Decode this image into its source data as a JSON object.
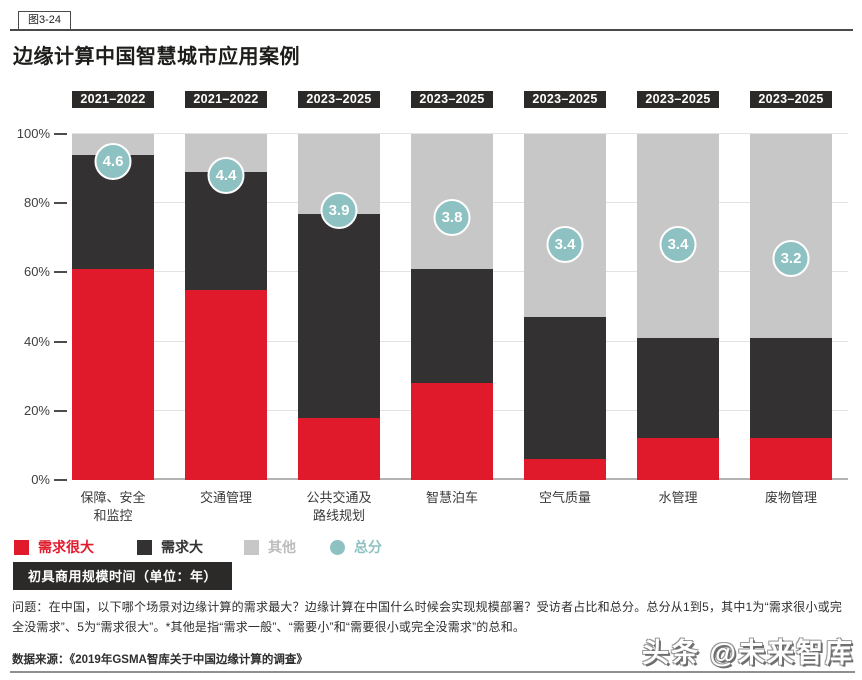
{
  "figure_tag": "图3-24",
  "title": "边缘计算中国智慧城市应用案例",
  "timeline_label": "初具商用规模时间（单位：年）",
  "note": "问题：在中国，以下哪个场景对边缘计算的需求最大？边缘计算在中国什么时候会实现规模部署？受访者占比和总分。总分从1到5，其中1为“需求很小或完全没需求”、5为“需求很大”。*其他是指“需求一般”、“需要小”和“需要很小或完全没需求”的总和。",
  "source": "数据来源：《2019年GSMA智库关于中国边缘计算的调查》",
  "watermark": "头条 @未来智库",
  "colors": {
    "very_large_demand": "#e11a2b",
    "large_demand": "#333132",
    "other": "#c8c7c7",
    "score": "#8ec1c2",
    "badge_bg": "#2b2a29",
    "legend_other_text": "#bcbcbc"
  },
  "legend": [
    {
      "label": "需求很大",
      "shape": "square",
      "color": "#e11a2b",
      "text_color": "#e11a2b"
    },
    {
      "label": "需求大",
      "shape": "square",
      "color": "#333132",
      "text_color": "#333132"
    },
    {
      "label": "其他",
      "shape": "square",
      "color": "#c8c7c7",
      "text_color": "#bcbcbc"
    },
    {
      "label": "总分",
      "shape": "circle",
      "color": "#8ec1c2",
      "text_color": "#8ec1c2"
    }
  ],
  "chart_data": {
    "type": "bar",
    "stacked": true,
    "title": "边缘计算中国智慧城市应用案例",
    "categories": [
      [
        "保障、安全",
        "和监控"
      ],
      [
        "交通管理"
      ],
      [
        "公共交通及",
        "路线规划"
      ],
      [
        "智慧泊车"
      ],
      [
        "空气质量"
      ],
      [
        "水管理"
      ],
      [
        "废物管理"
      ]
    ],
    "timeframes": [
      "2021–2022",
      "2021–2022",
      "2023–2025",
      "2023–2025",
      "2023–2025",
      "2023–2025",
      "2023–2025"
    ],
    "series": [
      {
        "name": "需求很大",
        "color": "#e11a2b",
        "values": [
          61,
          55,
          18,
          28,
          6,
          12,
          12
        ]
      },
      {
        "name": "需求大",
        "color": "#333132",
        "values": [
          33,
          34,
          59,
          33,
          41,
          29,
          29
        ]
      },
      {
        "name": "其他",
        "color": "#c8c7c7",
        "values": [
          6,
          11,
          23,
          39,
          53,
          59,
          59
        ]
      }
    ],
    "scores": {
      "name": "总分",
      "max": 5,
      "values": [
        4.6,
        4.4,
        3.9,
        3.8,
        3.4,
        3.4,
        3.2
      ]
    },
    "y_tick_labels": [
      "100%",
      "80%",
      "60%",
      "40%",
      "20%",
      "0%"
    ],
    "ylim": [
      0,
      100
    ],
    "grid": true,
    "legend_position": "bottom"
  }
}
